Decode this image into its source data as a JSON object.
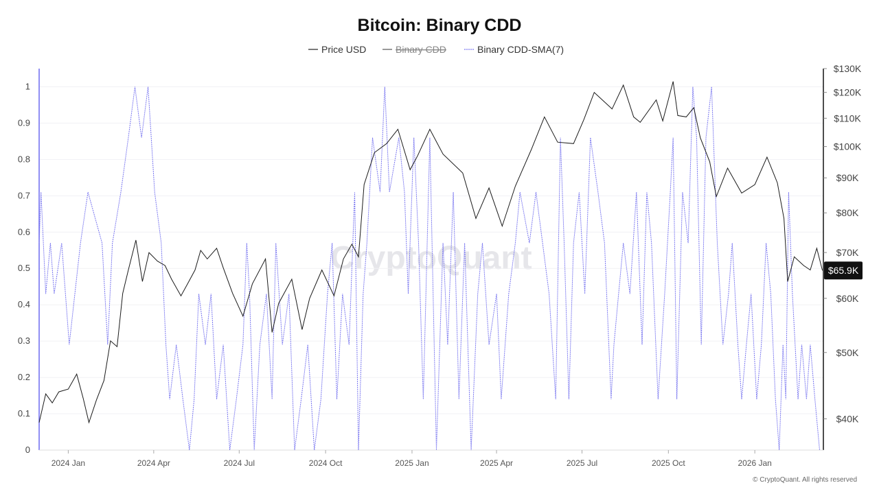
{
  "chart_data": {
    "type": "line",
    "title": "Bitcoin: Binary CDD",
    "watermark": "CryptoQuant",
    "copyright": "© CryptoQuant. All rights reserved",
    "legend": [
      {
        "name": "Price USD",
        "color": "#222222",
        "style": "solid",
        "hidden": false
      },
      {
        "name": "Binary CDD",
        "color": "#555555",
        "style": "solid",
        "hidden": true
      },
      {
        "name": "Binary CDD-SMA(7)",
        "color": "#7b78f0",
        "style": "dotted",
        "hidden": false
      }
    ],
    "x_range": [
      "2023-12-01",
      "2026-03-15"
    ],
    "x_ticks": [
      {
        "label": "2024 Jan",
        "date": "2024-01-01"
      },
      {
        "label": "2024 Apr",
        "date": "2024-04-01"
      },
      {
        "label": "2024 Jul",
        "date": "2024-07-01"
      },
      {
        "label": "2024 Oct",
        "date": "2024-10-01"
      },
      {
        "label": "2025 Jan",
        "date": "2025-01-01"
      },
      {
        "label": "2025 Apr",
        "date": "2025-04-01"
      },
      {
        "label": "2025 Jul",
        "date": "2025-07-01"
      },
      {
        "label": "2025 Oct",
        "date": "2025-10-01"
      },
      {
        "label": "2026 Jan",
        "date": "2026-01-01"
      }
    ],
    "y_left": {
      "range": [
        0,
        1.05
      ],
      "ticks": [
        "0",
        "0.1",
        "0.2",
        "0.3",
        "0.4",
        "0.5",
        "0.6",
        "0.7",
        "0.8",
        "0.9",
        "1"
      ]
    },
    "y_right": {
      "scale": "log",
      "range": [
        36000,
        130000
      ],
      "ticks": [
        {
          "label": "$40K",
          "value": 40000
        },
        {
          "label": "$50K",
          "value": 50000
        },
        {
          "label": "$60K",
          "value": 60000
        },
        {
          "label": "$70K",
          "value": 70000
        },
        {
          "label": "$80K",
          "value": 80000
        },
        {
          "label": "$90K",
          "value": 90000
        },
        {
          "label": "$100K",
          "value": 100000
        },
        {
          "label": "$110K",
          "value": 110000
        },
        {
          "label": "$120K",
          "value": 120000
        },
        {
          "label": "$130K",
          "value": 130000
        }
      ]
    },
    "last_price_label": "$65.9K",
    "last_price_value": 65900,
    "price_series": {
      "name": "Price USD",
      "points": [
        [
          "2023-12-01",
          39500
        ],
        [
          "2023-12-08",
          43500
        ],
        [
          "2023-12-15",
          42200
        ],
        [
          "2023-12-22",
          43800
        ],
        [
          "2024-01-01",
          44200
        ],
        [
          "2024-01-10",
          46500
        ],
        [
          "2024-01-17",
          42800
        ],
        [
          "2024-01-23",
          39500
        ],
        [
          "2024-01-31",
          42600
        ],
        [
          "2024-02-08",
          45500
        ],
        [
          "2024-02-15",
          52000
        ],
        [
          "2024-02-22",
          51000
        ],
        [
          "2024-02-28",
          61000
        ],
        [
          "2024-03-05",
          66000
        ],
        [
          "2024-03-13",
          73000
        ],
        [
          "2024-03-20",
          63500
        ],
        [
          "2024-03-27",
          70000
        ],
        [
          "2024-04-05",
          68000
        ],
        [
          "2024-04-13",
          67000
        ],
        [
          "2024-04-20",
          64000
        ],
        [
          "2024-04-30",
          60500
        ],
        [
          "2024-05-07",
          63000
        ],
        [
          "2024-05-15",
          66000
        ],
        [
          "2024-05-21",
          70500
        ],
        [
          "2024-05-28",
          68500
        ],
        [
          "2024-06-07",
          71000
        ],
        [
          "2024-06-14",
          66500
        ],
        [
          "2024-06-24",
          61000
        ],
        [
          "2024-07-05",
          56500
        ],
        [
          "2024-07-15",
          63000
        ],
        [
          "2024-07-29",
          68500
        ],
        [
          "2024-08-05",
          53500
        ],
        [
          "2024-08-12",
          59000
        ],
        [
          "2024-08-26",
          64000
        ],
        [
          "2024-09-06",
          54000
        ],
        [
          "2024-09-14",
          60000
        ],
        [
          "2024-09-27",
          66000
        ],
        [
          "2024-10-10",
          60500
        ],
        [
          "2024-10-20",
          68500
        ],
        [
          "2024-10-29",
          72000
        ],
        [
          "2024-11-05",
          69000
        ],
        [
          "2024-11-11",
          88000
        ],
        [
          "2024-11-22",
          98000
        ],
        [
          "2024-12-05",
          101000
        ],
        [
          "2024-12-17",
          106000
        ],
        [
          "2024-12-30",
          92500
        ],
        [
          "2025-01-07",
          97000
        ],
        [
          "2025-01-20",
          106000
        ],
        [
          "2025-02-03",
          97500
        ],
        [
          "2025-02-24",
          91500
        ],
        [
          "2025-03-10",
          78500
        ],
        [
          "2025-03-24",
          87000
        ],
        [
          "2025-04-07",
          76500
        ],
        [
          "2025-04-21",
          87500
        ],
        [
          "2025-05-08",
          99000
        ],
        [
          "2025-05-22",
          110500
        ],
        [
          "2025-06-05",
          101500
        ],
        [
          "2025-06-22",
          101000
        ],
        [
          "2025-07-03",
          109500
        ],
        [
          "2025-07-14",
          120000
        ],
        [
          "2025-08-02",
          113500
        ],
        [
          "2025-08-14",
          123000
        ],
        [
          "2025-08-25",
          110500
        ],
        [
          "2025-09-01",
          108500
        ],
        [
          "2025-09-18",
          117000
        ],
        [
          "2025-09-25",
          109000
        ],
        [
          "2025-10-06",
          124500
        ],
        [
          "2025-10-11",
          111000
        ],
        [
          "2025-10-20",
          110500
        ],
        [
          "2025-10-28",
          114000
        ],
        [
          "2025-11-04",
          103000
        ],
        [
          "2025-11-14",
          95000
        ],
        [
          "2025-11-21",
          84500
        ],
        [
          "2025-12-03",
          93000
        ],
        [
          "2025-12-18",
          85500
        ],
        [
          "2026-01-01",
          88000
        ],
        [
          "2026-01-14",
          96500
        ],
        [
          "2026-01-25",
          88500
        ],
        [
          "2026-02-01",
          78500
        ],
        [
          "2026-02-05",
          63500
        ],
        [
          "2026-02-12",
          69000
        ],
        [
          "2026-02-22",
          67000
        ],
        [
          "2026-03-01",
          66000
        ],
        [
          "2026-03-08",
          71000
        ],
        [
          "2026-03-14",
          65900
        ]
      ]
    },
    "sma_series": {
      "name": "Binary CDD-SMA(7)",
      "points": [
        [
          "2023-12-01",
          0.57
        ],
        [
          "2023-12-03",
          0.71
        ],
        [
          "2023-12-08",
          0.43
        ],
        [
          "2023-12-13",
          0.57
        ],
        [
          "2023-12-17",
          0.43
        ],
        [
          "2023-12-25",
          0.57
        ],
        [
          "2024-01-02",
          0.29
        ],
        [
          "2024-01-08",
          0.43
        ],
        [
          "2024-01-14",
          0.57
        ],
        [
          "2024-01-22",
          0.71
        ],
        [
          "2024-02-06",
          0.57
        ],
        [
          "2024-02-12",
          0.29
        ],
        [
          "2024-02-17",
          0.57
        ],
        [
          "2024-02-26",
          0.71
        ],
        [
          "2024-03-05",
          0.86
        ],
        [
          "2024-03-12",
          1.0
        ],
        [
          "2024-03-19",
          0.86
        ],
        [
          "2024-03-26",
          1.0
        ],
        [
          "2024-04-02",
          0.71
        ],
        [
          "2024-04-09",
          0.57
        ],
        [
          "2024-04-14",
          0.29
        ],
        [
          "2024-04-18",
          0.14
        ],
        [
          "2024-04-25",
          0.29
        ],
        [
          "2024-05-02",
          0.14
        ],
        [
          "2024-05-09",
          0.0
        ],
        [
          "2024-05-14",
          0.14
        ],
        [
          "2024-05-19",
          0.43
        ],
        [
          "2024-05-26",
          0.29
        ],
        [
          "2024-06-01",
          0.43
        ],
        [
          "2024-06-07",
          0.14
        ],
        [
          "2024-06-14",
          0.29
        ],
        [
          "2024-06-21",
          0.0
        ],
        [
          "2024-06-28",
          0.14
        ],
        [
          "2024-07-05",
          0.29
        ],
        [
          "2024-07-09",
          0.57
        ],
        [
          "2024-07-12",
          0.43
        ],
        [
          "2024-07-17",
          0.0
        ],
        [
          "2024-07-23",
          0.29
        ],
        [
          "2024-07-30",
          0.43
        ],
        [
          "2024-08-05",
          0.14
        ],
        [
          "2024-08-09",
          0.57
        ],
        [
          "2024-08-16",
          0.29
        ],
        [
          "2024-08-23",
          0.43
        ],
        [
          "2024-08-29",
          0.0
        ],
        [
          "2024-09-05",
          0.14
        ],
        [
          "2024-09-12",
          0.29
        ],
        [
          "2024-09-19",
          0.0
        ],
        [
          "2024-09-26",
          0.14
        ],
        [
          "2024-10-03",
          0.43
        ],
        [
          "2024-10-08",
          0.57
        ],
        [
          "2024-10-13",
          0.14
        ],
        [
          "2024-10-19",
          0.43
        ],
        [
          "2024-10-26",
          0.29
        ],
        [
          "2024-11-01",
          0.71
        ],
        [
          "2024-11-05",
          0.0
        ],
        [
          "2024-11-10",
          0.43
        ],
        [
          "2024-11-14",
          0.57
        ],
        [
          "2024-11-20",
          0.86
        ],
        [
          "2024-11-28",
          0.71
        ],
        [
          "2024-12-03",
          1.0
        ],
        [
          "2024-12-08",
          0.71
        ],
        [
          "2024-12-18",
          0.86
        ],
        [
          "2024-12-24",
          0.71
        ],
        [
          "2024-12-28",
          0.43
        ],
        [
          "2025-01-03",
          0.86
        ],
        [
          "2025-01-08",
          0.57
        ],
        [
          "2025-01-13",
          0.14
        ],
        [
          "2025-01-20",
          0.86
        ],
        [
          "2025-01-27",
          0.0
        ],
        [
          "2025-02-03",
          0.57
        ],
        [
          "2025-02-08",
          0.29
        ],
        [
          "2025-02-14",
          0.71
        ],
        [
          "2025-02-20",
          0.14
        ],
        [
          "2025-02-26",
          0.57
        ],
        [
          "2025-03-05",
          0.0
        ],
        [
          "2025-03-12",
          0.43
        ],
        [
          "2025-03-17",
          0.57
        ],
        [
          "2025-03-24",
          0.29
        ],
        [
          "2025-04-01",
          0.43
        ],
        [
          "2025-04-06",
          0.14
        ],
        [
          "2025-04-14",
          0.43
        ],
        [
          "2025-04-21",
          0.57
        ],
        [
          "2025-04-26",
          0.71
        ],
        [
          "2025-05-06",
          0.57
        ],
        [
          "2025-05-13",
          0.71
        ],
        [
          "2025-05-20",
          0.57
        ],
        [
          "2025-05-27",
          0.43
        ],
        [
          "2025-06-03",
          0.14
        ],
        [
          "2025-06-08",
          0.86
        ],
        [
          "2025-06-12",
          0.57
        ],
        [
          "2025-06-17",
          0.14
        ],
        [
          "2025-06-22",
          0.57
        ],
        [
          "2025-06-28",
          0.71
        ],
        [
          "2025-07-04",
          0.43
        ],
        [
          "2025-07-10",
          0.86
        ],
        [
          "2025-07-18",
          0.71
        ],
        [
          "2025-07-25",
          0.57
        ],
        [
          "2025-08-01",
          0.14
        ],
        [
          "2025-08-04",
          0.29
        ],
        [
          "2025-08-09",
          0.43
        ],
        [
          "2025-08-14",
          0.57
        ],
        [
          "2025-08-21",
          0.43
        ],
        [
          "2025-08-28",
          0.71
        ],
        [
          "2025-09-03",
          0.29
        ],
        [
          "2025-09-08",
          0.71
        ],
        [
          "2025-09-13",
          0.57
        ],
        [
          "2025-09-20",
          0.14
        ],
        [
          "2025-09-27",
          0.43
        ],
        [
          "2025-10-03",
          0.71
        ],
        [
          "2025-10-06",
          0.86
        ],
        [
          "2025-10-10",
          0.14
        ],
        [
          "2025-10-16",
          0.71
        ],
        [
          "2025-10-22",
          0.57
        ],
        [
          "2025-10-27",
          1.0
        ],
        [
          "2025-10-31",
          0.86
        ],
        [
          "2025-11-05",
          0.29
        ],
        [
          "2025-11-10",
          0.86
        ],
        [
          "2025-11-16",
          1.0
        ],
        [
          "2025-11-22",
          0.57
        ],
        [
          "2025-11-28",
          0.29
        ],
        [
          "2025-12-04",
          0.43
        ],
        [
          "2025-12-08",
          0.57
        ],
        [
          "2025-12-14",
          0.29
        ],
        [
          "2025-12-18",
          0.14
        ],
        [
          "2025-12-23",
          0.29
        ],
        [
          "2025-12-28",
          0.43
        ],
        [
          "2026-01-03",
          0.14
        ],
        [
          "2026-01-08",
          0.29
        ],
        [
          "2026-01-13",
          0.57
        ],
        [
          "2026-01-18",
          0.43
        ],
        [
          "2026-01-23",
          0.14
        ],
        [
          "2026-01-27",
          0.0
        ],
        [
          "2026-01-31",
          0.29
        ],
        [
          "2026-02-03",
          0.14
        ],
        [
          "2026-02-06",
          0.71
        ],
        [
          "2026-02-10",
          0.43
        ],
        [
          "2026-02-16",
          0.14
        ],
        [
          "2026-02-20",
          0.29
        ],
        [
          "2026-02-25",
          0.14
        ],
        [
          "2026-03-01",
          0.29
        ],
        [
          "2026-03-06",
          0.14
        ],
        [
          "2026-03-11",
          0.0
        ]
      ]
    }
  }
}
